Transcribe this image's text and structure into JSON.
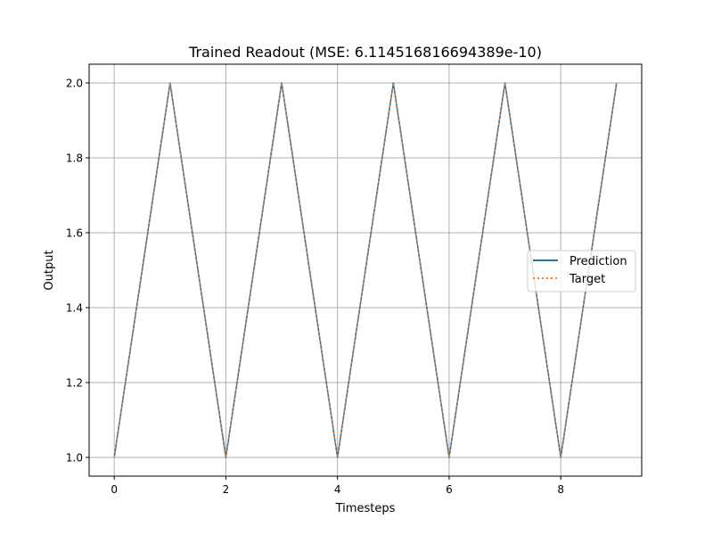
{
  "chart_data": {
    "type": "line",
    "title": "Trained Readout (MSE: 6.114516816694389e-10)",
    "xlabel": "Timesteps",
    "ylabel": "Output",
    "xlim": [
      -0.45,
      9.45
    ],
    "ylim": [
      0.95,
      2.05
    ],
    "x_ticks": [
      0,
      2,
      4,
      6,
      8
    ],
    "y_ticks": [
      1.0,
      1.2,
      1.4,
      1.6,
      1.8,
      2.0
    ],
    "y_tick_labels": [
      "1.0",
      "1.2",
      "1.4",
      "1.6",
      "1.8",
      "2.0"
    ],
    "grid": true,
    "legend_position": "center-right",
    "x": [
      0,
      1,
      2,
      3,
      4,
      5,
      6,
      7,
      8,
      9
    ],
    "series": [
      {
        "name": "Prediction",
        "values": [
          1.0,
          2.0,
          1.0,
          2.0,
          1.0,
          2.0,
          1.0,
          2.0,
          1.0,
          2.0
        ],
        "color": "#1f77b4",
        "style": "solid"
      },
      {
        "name": "Target",
        "values": [
          1.0,
          2.0,
          1.0,
          2.0,
          1.0,
          2.0,
          1.0,
          2.0,
          1.0,
          2.0
        ],
        "color": "#ff7f0e",
        "style": "dotted"
      }
    ]
  }
}
